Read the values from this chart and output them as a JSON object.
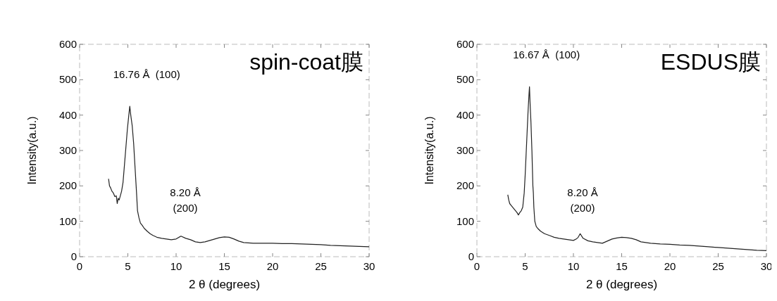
{
  "chart_data": [
    {
      "type": "line",
      "title": "spin-coat膜",
      "xlabel": "2 θ (degrees)",
      "ylabel": "Intensity(a.u.)",
      "xlim": [
        0,
        30
      ],
      "xticks": [
        0,
        5,
        10,
        15,
        20,
        25,
        30
      ],
      "ylim": [
        0,
        600
      ],
      "yticks": [
        0,
        100,
        200,
        300,
        400,
        500,
        600
      ],
      "grid": false,
      "marker": "none",
      "line_style": "solid",
      "annotations": [
        "16.76 Å  (100)",
        "8.20 Å\n(200)"
      ],
      "series": [
        {
          "color": "#222222",
          "x": [
            3.0,
            3.1,
            3.2,
            3.35,
            3.5,
            3.65,
            3.8,
            3.9,
            4.0,
            4.1,
            4.2,
            4.35,
            4.5,
            4.65,
            4.8,
            4.95,
            5.1,
            5.2,
            5.3,
            5.45,
            5.6,
            5.75,
            5.9,
            6.0,
            6.15,
            6.3,
            6.5,
            6.7,
            7.0,
            7.3,
            7.6,
            8.0,
            8.5,
            9.0,
            9.5,
            10.0,
            10.5,
            11.0,
            11.5,
            12.0,
            12.5,
            13.0,
            13.5,
            14.0,
            14.5,
            15.0,
            15.5,
            16.0,
            16.5,
            17.0,
            18.0,
            19.0,
            20.0,
            21.0,
            22.0,
            23.0,
            24.0,
            25.0,
            26.0,
            27.0,
            28.0,
            29.0,
            30.0
          ],
          "values": [
            220,
            200,
            195,
            185,
            180,
            170,
            172,
            150,
            165,
            160,
            170,
            185,
            210,
            260,
            310,
            360,
            400,
            425,
            400,
            370,
            320,
            250,
            180,
            130,
            110,
            95,
            88,
            80,
            72,
            65,
            60,
            55,
            52,
            50,
            48,
            50,
            58,
            52,
            48,
            42,
            40,
            42,
            46,
            50,
            54,
            56,
            55,
            50,
            44,
            40,
            38,
            38,
            38,
            37,
            37,
            36,
            35,
            34,
            32,
            31,
            30,
            29,
            28
          ]
        }
      ]
    },
    {
      "type": "line",
      "title": "ESDUS膜",
      "xlabel": "2 θ (degrees)",
      "ylabel": "Intensity(a.u.)",
      "xlim": [
        0,
        30
      ],
      "xticks": [
        0,
        5,
        10,
        15,
        20,
        25,
        30
      ],
      "ylim": [
        0,
        600
      ],
      "yticks": [
        0,
        100,
        200,
        300,
        400,
        500,
        600
      ],
      "grid": false,
      "marker": "none",
      "line_style": "solid",
      "annotations": [
        "16.67 Å  (100)",
        "8.20 Å\n(200)"
      ],
      "series": [
        {
          "color": "#222222",
          "x": [
            3.2,
            3.3,
            3.4,
            3.55,
            3.7,
            3.85,
            4.0,
            4.15,
            4.3,
            4.45,
            4.6,
            4.75,
            4.9,
            5.0,
            5.1,
            5.2,
            5.3,
            5.4,
            5.45,
            5.5,
            5.6,
            5.7,
            5.75,
            5.8,
            5.85,
            5.9,
            6.0,
            6.15,
            6.3,
            6.6,
            7.0,
            7.5,
            8.0,
            8.5,
            9.0,
            9.5,
            10.0,
            10.3,
            10.5,
            10.7,
            11.0,
            11.5,
            12.0,
            12.5,
            13.0,
            13.5,
            14.0,
            14.5,
            15.0,
            15.5,
            16.0,
            16.5,
            17.0,
            18.0,
            19.0,
            20.0,
            21.0,
            22.0,
            23.0,
            24.0,
            25.0,
            26.0,
            27.0,
            28.0,
            29.0,
            30.0
          ],
          "values": [
            175,
            160,
            150,
            145,
            140,
            135,
            130,
            125,
            118,
            125,
            130,
            140,
            180,
            230,
            290,
            350,
            410,
            460,
            480,
            440,
            380,
            300,
            250,
            200,
            180,
            140,
            100,
            85,
            80,
            72,
            65,
            60,
            55,
            52,
            50,
            48,
            46,
            50,
            55,
            65,
            52,
            45,
            42,
            40,
            38,
            44,
            50,
            53,
            55,
            54,
            52,
            48,
            42,
            38,
            36,
            35,
            33,
            32,
            30,
            28,
            26,
            24,
            22,
            20,
            18,
            17
          ]
        }
      ]
    }
  ]
}
